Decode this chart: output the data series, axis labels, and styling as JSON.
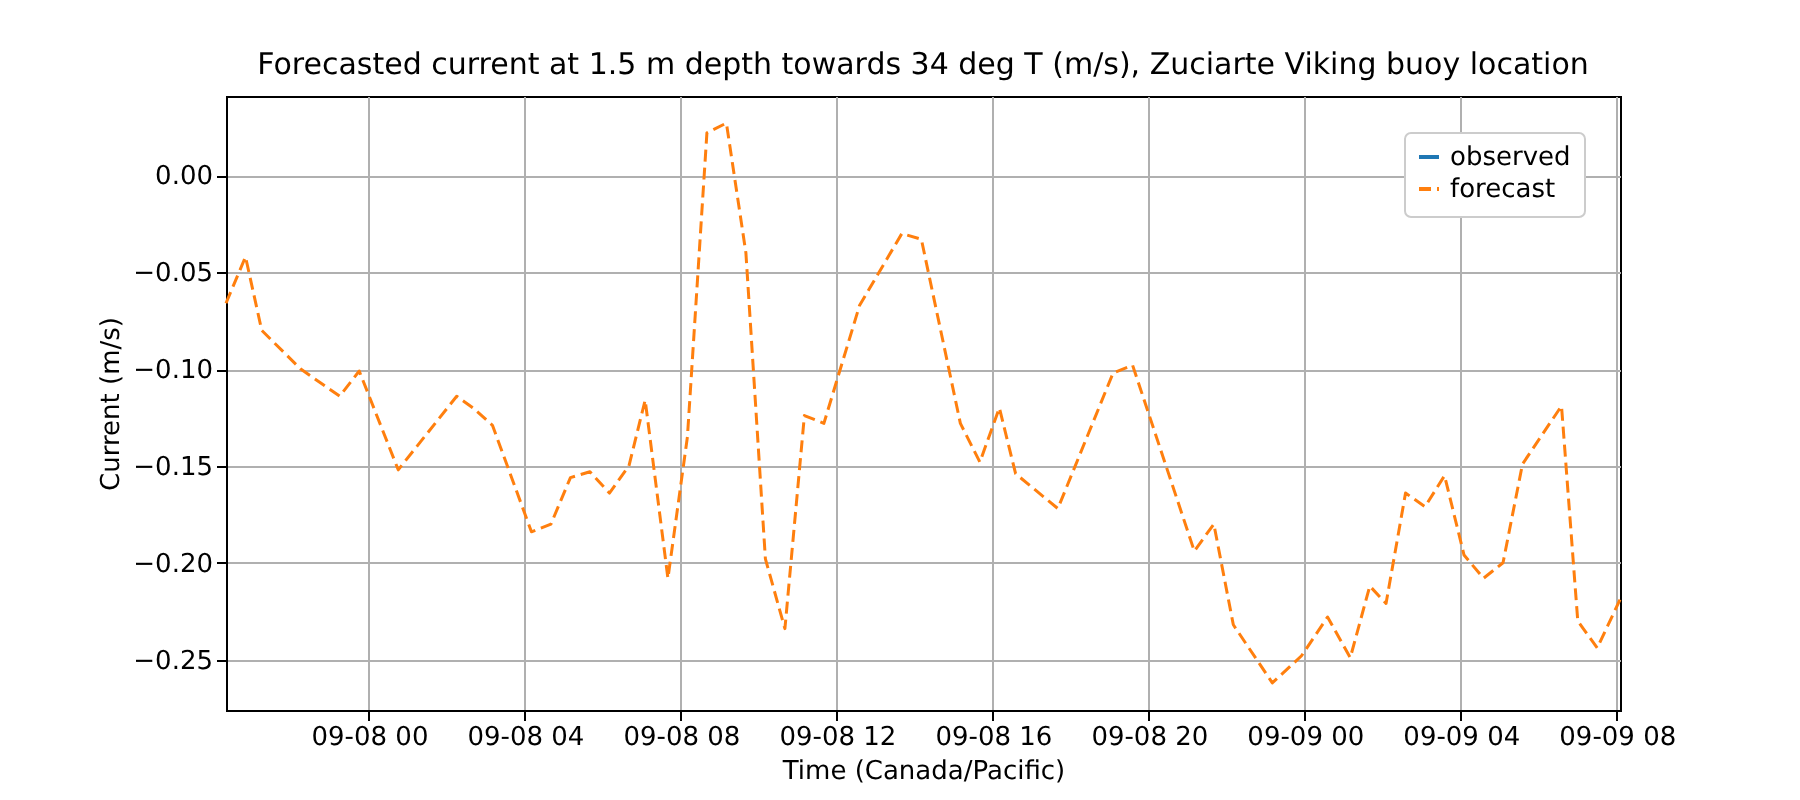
{
  "chart_data": {
    "type": "line",
    "title": "Forecasted current at 1.5 m depth towards 34 deg T (m/s), Zuciarte Viking buoy location",
    "xlabel": "Time (Canada/Pacific)",
    "ylabel": "Current (m/s)",
    "x": [
      "--09-07T20:20",
      "--09-07T20:50",
      "--09-07T21:15",
      "--09-07T22:15",
      "--09-07T23:15",
      "--09-07T23:45",
      "--09-08T00:45",
      "--09-08T02:15",
      "--09-08T02:40",
      "--09-08T03:10",
      "--09-08T04:10",
      "--09-08T04:40",
      "--09-08T05:10",
      "--09-08T05:40",
      "--09-08T06:10",
      "--09-08T06:40",
      "--09-08T07:05",
      "--09-08T07:40",
      "--09-08T08:10",
      "--09-08T08:40",
      "--09-08T09:10",
      "--09-08T09:40",
      "--09-08T10:10",
      "--09-08T10:40",
      "--09-08T11:10",
      "--09-08T11:40",
      "--09-08T12:35",
      "--09-08T13:40",
      "--09-08T14:10",
      "--09-08T15:10",
      "--09-08T15:40",
      "--09-08T16:10",
      "--09-08T16:35",
      "--09-08T17:40",
      "--09-08T19:05",
      "--09-08T19:35",
      "--09-08T21:10",
      "--09-08T21:40",
      "--09-08T22:10",
      "--09-08T23:10",
      "--09-08T23:55",
      "--09-09T00:35",
      "--09-09T01:10",
      "--09-09T01:40",
      "--09-09T02:05",
      "--09-09T02:35",
      "--09-09T03:05",
      "--09-09T03:35",
      "--09-09T04:05",
      "--09-09T04:35",
      "--09-09T05:05",
      "--09-09T05:35",
      "--09-09T06:35",
      "--09-09T07:00",
      "--09-09T07:30",
      "--09-09T08:05"
    ],
    "series": [
      {
        "name": "observed",
        "color": "#1f77b4",
        "line_style": "solid",
        "values": [
          null,
          null,
          null,
          null,
          null,
          null,
          null,
          null,
          null,
          null,
          null,
          null,
          null,
          null,
          null,
          null,
          null,
          null,
          null,
          null,
          null,
          null,
          null,
          null,
          null,
          null,
          null,
          null,
          null,
          null,
          null,
          null,
          null,
          null,
          null,
          null,
          null,
          null,
          null,
          null,
          null,
          null,
          null,
          null,
          null,
          null,
          null,
          null,
          null,
          null,
          null,
          null,
          null,
          null,
          null,
          null
        ]
      },
      {
        "name": "forecast",
        "color": "#ff7f0e",
        "line_style": "dashed",
        "values": [
          -0.066,
          -0.042,
          -0.08,
          -0.1,
          -0.114,
          -0.101,
          -0.152,
          -0.114,
          -0.12,
          -0.129,
          -0.184,
          -0.18,
          -0.156,
          -0.153,
          -0.164,
          -0.15,
          -0.116,
          -0.208,
          -0.135,
          0.022,
          0.027,
          -0.04,
          -0.198,
          -0.234,
          -0.124,
          -0.128,
          -0.067,
          -0.03,
          -0.033,
          -0.128,
          -0.148,
          -0.12,
          -0.154,
          -0.172,
          -0.102,
          -0.098,
          -0.194,
          -0.18,
          -0.232,
          -0.262,
          -0.248,
          -0.228,
          -0.249,
          -0.212,
          -0.221,
          -0.164,
          -0.171,
          -0.155,
          -0.196,
          -0.208,
          -0.2,
          -0.149,
          -0.119,
          -0.23,
          -0.244,
          -0.219
        ]
      }
    ],
    "xlim": [
      "--09-07T20:20",
      "--09-09T08:05"
    ],
    "xticks": [
      {
        "value": "--09-08T00:00",
        "label": "09-08 00"
      },
      {
        "value": "--09-08T04:00",
        "label": "09-08 04"
      },
      {
        "value": "--09-08T08:00",
        "label": "09-08 08"
      },
      {
        "value": "--09-08T12:00",
        "label": "09-08 12"
      },
      {
        "value": "--09-08T16:00",
        "label": "09-08 16"
      },
      {
        "value": "--09-08T20:00",
        "label": "09-08 20"
      },
      {
        "value": "--09-09T00:00",
        "label": "09-09 00"
      },
      {
        "value": "--09-09T04:00",
        "label": "09-09 04"
      },
      {
        "value": "--09-09T08:00",
        "label": "09-09 08"
      }
    ],
    "ylim": [
      -0.276,
      0.041
    ],
    "yticks": [
      {
        "value": 0,
        "label": "0.00"
      },
      {
        "value": -0.05,
        "label": "−0.05"
      },
      {
        "value": -0.1,
        "label": "−0.10"
      },
      {
        "value": -0.15,
        "label": "−0.15"
      },
      {
        "value": -0.2,
        "label": "−0.20"
      },
      {
        "value": -0.25,
        "label": "−0.25"
      }
    ],
    "grid": true,
    "legend": "top right"
  }
}
